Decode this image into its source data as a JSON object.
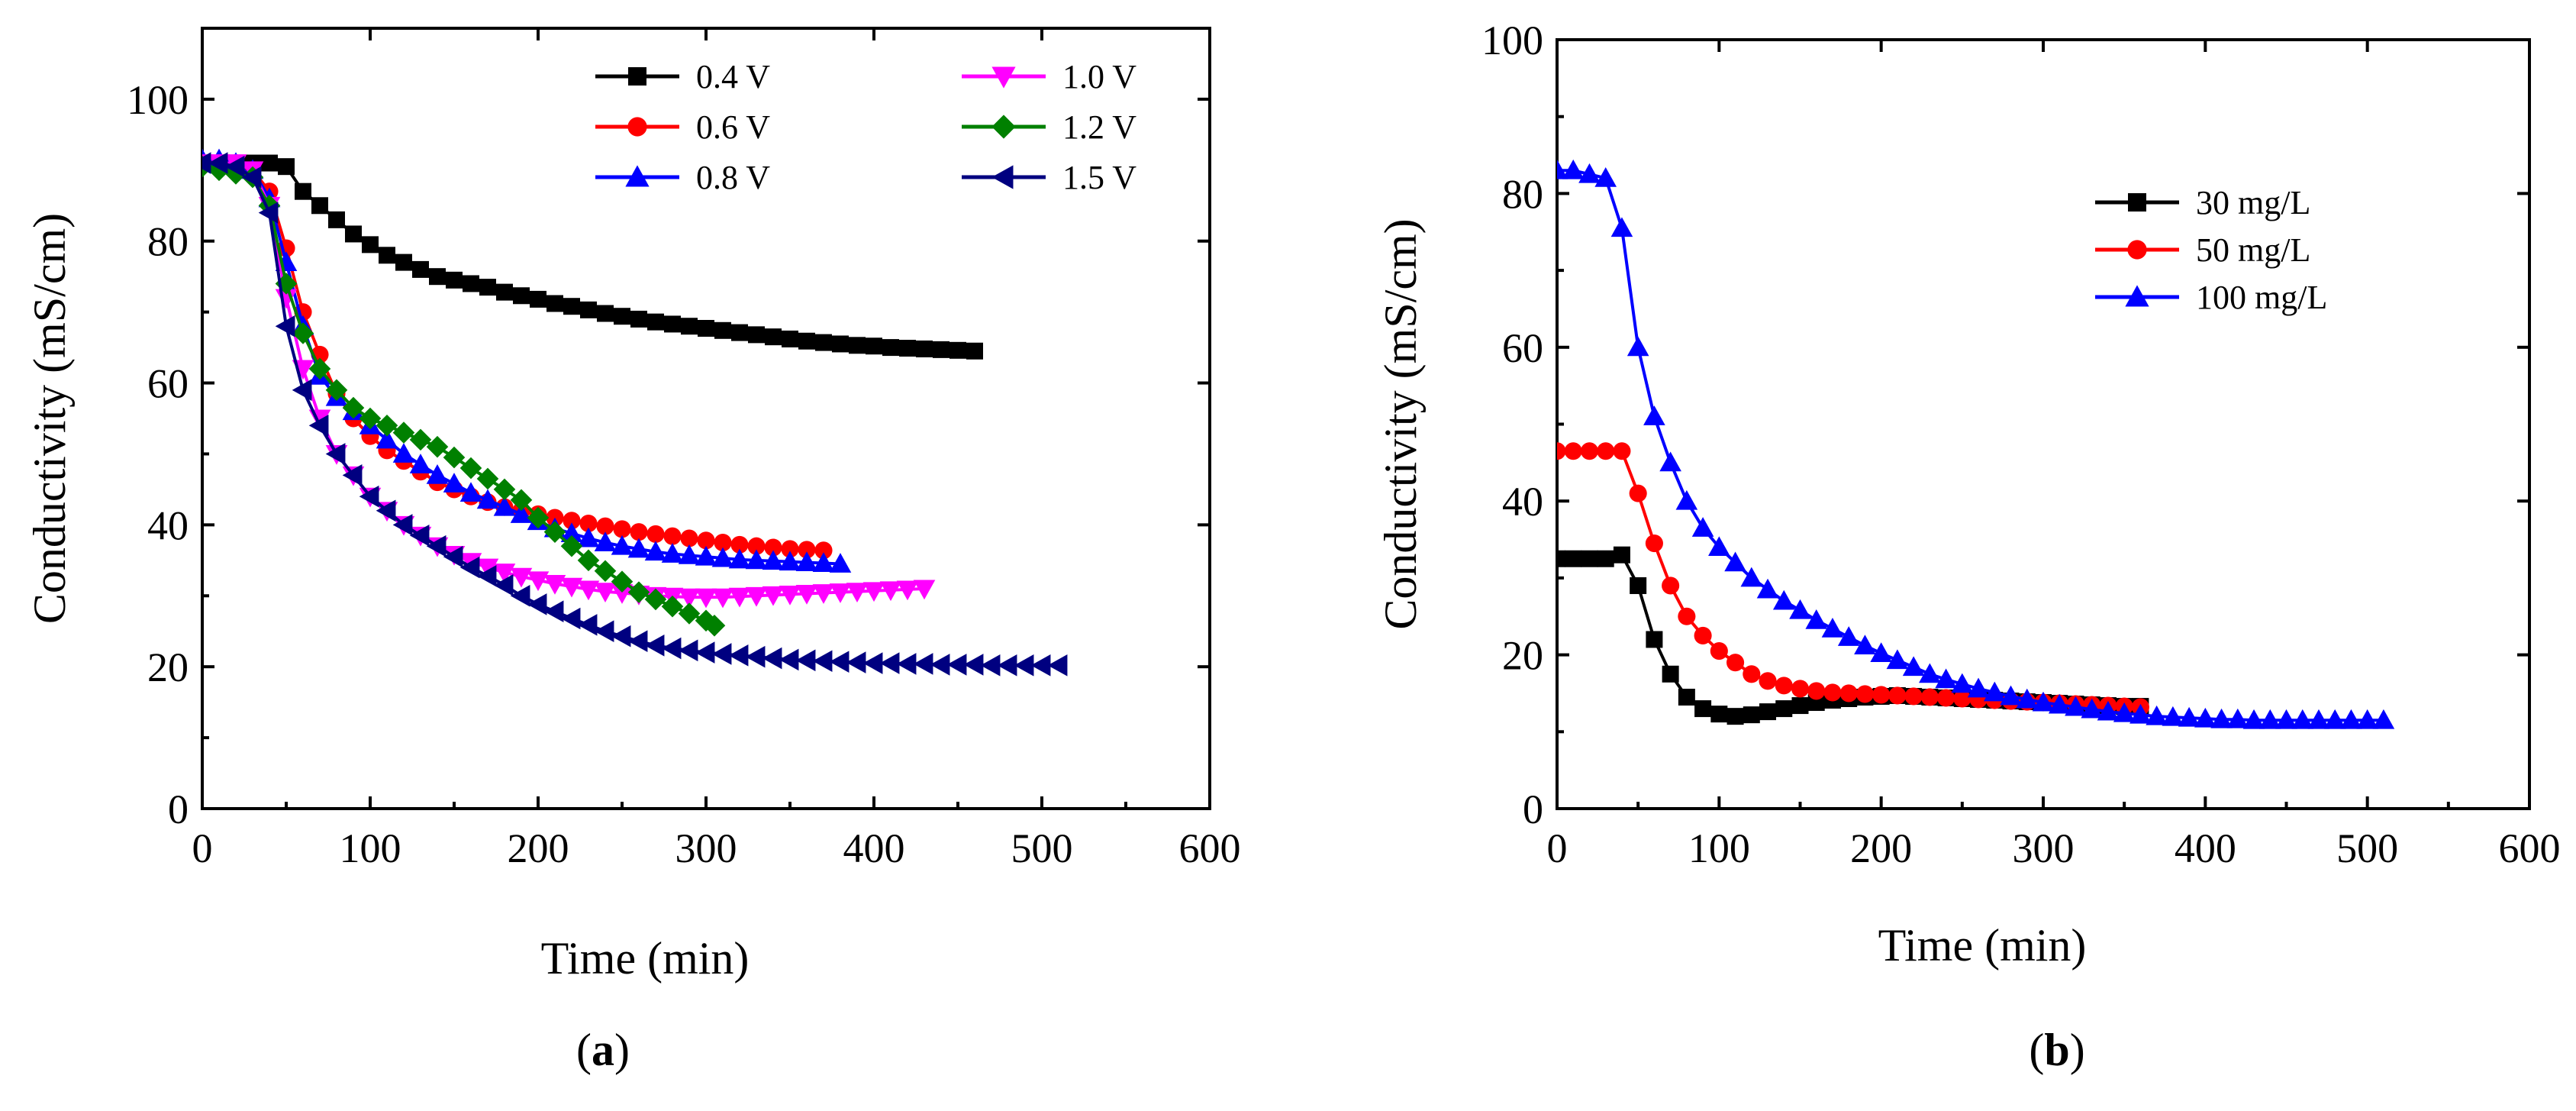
{
  "chart_data": [
    {
      "type": "line",
      "panel_label": "a",
      "caption_open": "(",
      "caption_close": ")",
      "title": "",
      "xlabel": "Time (min)",
      "ylabel": "Conductivity (mS/cm)",
      "xlim": [
        0,
        600
      ],
      "ylim": [
        0,
        110
      ],
      "xticks": [
        0,
        100,
        200,
        300,
        400,
        500,
        600
      ],
      "yticks": [
        0,
        20,
        40,
        60,
        80,
        100
      ],
      "legend_location": "top-right",
      "legend_columns": 2,
      "series": [
        {
          "name": "0.4 V",
          "color": "#000000",
          "marker": "square",
          "x": [
            0,
            10,
            20,
            30,
            40,
            50,
            60,
            70,
            80,
            90,
            100,
            110,
            120,
            130,
            140,
            150,
            160,
            170,
            180,
            190,
            200,
            210,
            220,
            230,
            240,
            250,
            260,
            270,
            280,
            290,
            300,
            310,
            320,
            330,
            340,
            350,
            360,
            370,
            380,
            390,
            400,
            410,
            420,
            430,
            440,
            450,
            460
          ],
          "y": [
            91,
            91,
            91,
            91,
            91,
            90.5,
            87,
            85,
            83,
            81,
            79.5,
            78,
            77,
            76,
            75,
            74.5,
            74,
            73.5,
            72.8,
            72.3,
            71.8,
            71.2,
            70.8,
            70.3,
            69.8,
            69.4,
            69,
            68.6,
            68.3,
            68,
            67.7,
            67.4,
            67.1,
            66.8,
            66.5,
            66.2,
            65.9,
            65.7,
            65.5,
            65.3,
            65.2,
            65,
            64.9,
            64.8,
            64.7,
            64.6,
            64.5
          ]
        },
        {
          "name": "0.6 V",
          "color": "#ff0000",
          "marker": "circle",
          "x": [
            0,
            10,
            20,
            30,
            40,
            50,
            60,
            70,
            80,
            90,
            100,
            110,
            120,
            130,
            140,
            150,
            160,
            170,
            180,
            190,
            200,
            210,
            220,
            230,
            240,
            250,
            260,
            270,
            280,
            290,
            300,
            310,
            320,
            330,
            340,
            350,
            360,
            370
          ],
          "y": [
            91,
            91,
            91,
            90,
            87,
            79,
            70,
            64,
            58.5,
            55,
            52.5,
            50.5,
            49,
            47.5,
            46,
            45,
            44,
            43.2,
            42.5,
            42,
            41.5,
            41,
            40.6,
            40.2,
            39.8,
            39.4,
            39,
            38.7,
            38.4,
            38.1,
            37.8,
            37.5,
            37.2,
            37,
            36.8,
            36.6,
            36.5,
            36.4
          ]
        },
        {
          "name": "0.8 V",
          "color": "#0000ff",
          "marker": "triangle-up",
          "x": [
            0,
            10,
            20,
            30,
            40,
            50,
            60,
            70,
            80,
            90,
            100,
            110,
            120,
            130,
            140,
            150,
            160,
            170,
            180,
            190,
            200,
            210,
            220,
            230,
            240,
            250,
            260,
            270,
            280,
            290,
            300,
            310,
            320,
            330,
            340,
            350,
            360,
            370,
            380
          ],
          "y": [
            91.5,
            91.5,
            91,
            90,
            86,
            77,
            68,
            61,
            58,
            56,
            54,
            52,
            50,
            48.5,
            47,
            45.8,
            44.5,
            43.5,
            42.5,
            41.5,
            40.5,
            39.5,
            38.8,
            38.1,
            37.5,
            37,
            36.6,
            36.2,
            35.9,
            35.7,
            35.5,
            35.3,
            35.1,
            35,
            34.9,
            34.8,
            34.7,
            34.6,
            34.5
          ]
        },
        {
          "name": "1.0 V",
          "color": "#ff00ff",
          "marker": "triangle-down",
          "x": [
            0,
            10,
            20,
            30,
            40,
            50,
            60,
            70,
            80,
            90,
            100,
            110,
            120,
            130,
            140,
            150,
            160,
            170,
            180,
            190,
            200,
            210,
            220,
            230,
            240,
            250,
            260,
            270,
            280,
            290,
            300,
            310,
            320,
            330,
            340,
            350,
            360,
            370,
            380,
            390,
            400,
            410,
            420,
            430
          ],
          "y": [
            91,
            91,
            91,
            90,
            85,
            72,
            62,
            55,
            50,
            47,
            44,
            42,
            40,
            38.5,
            37,
            35.8,
            34.8,
            34,
            33.3,
            32.7,
            32.2,
            31.7,
            31.3,
            30.9,
            30.6,
            30.4,
            30.2,
            30,
            29.9,
            29.8,
            29.8,
            29.8,
            29.9,
            30,
            30.1,
            30.2,
            30.3,
            30.4,
            30.5,
            30.6,
            30.7,
            30.8,
            30.9,
            31
          ]
        },
        {
          "name": "1.2 V",
          "color": "#008000",
          "marker": "diamond",
          "x": [
            0,
            10,
            20,
            30,
            40,
            50,
            60,
            70,
            80,
            90,
            100,
            110,
            120,
            130,
            140,
            150,
            160,
            170,
            180,
            190,
            200,
            210,
            220,
            230,
            240,
            250,
            260,
            270,
            280,
            290,
            300,
            305
          ],
          "y": [
            90.5,
            90,
            89.5,
            89,
            85,
            74,
            67,
            62,
            59,
            56.5,
            55,
            54,
            53,
            52,
            51,
            49.5,
            48,
            46.5,
            45,
            43.5,
            41,
            39,
            37,
            35,
            33.5,
            32,
            30.5,
            29.5,
            28.5,
            27.5,
            26.5,
            25.8
          ]
        },
        {
          "name": "1.5 V",
          "color": "#000080",
          "marker": "triangle-left",
          "x": [
            0,
            10,
            20,
            30,
            40,
            50,
            60,
            70,
            80,
            90,
            100,
            110,
            120,
            130,
            140,
            150,
            160,
            170,
            180,
            190,
            200,
            210,
            220,
            230,
            240,
            250,
            260,
            270,
            280,
            290,
            300,
            310,
            320,
            330,
            340,
            350,
            360,
            370,
            380,
            390,
            400,
            410,
            420,
            430,
            440,
            450,
            460,
            470,
            480,
            490,
            500,
            510
          ],
          "y": [
            91,
            91,
            90.5,
            89,
            84,
            68,
            59,
            54,
            50,
            47,
            44,
            42,
            40,
            38.5,
            37,
            35.5,
            34,
            32.8,
            31.5,
            30,
            28.8,
            27.8,
            26.8,
            25.9,
            25,
            24.3,
            23.6,
            23,
            22.6,
            22.3,
            22,
            21.8,
            21.6,
            21.4,
            21.2,
            21,
            20.9,
            20.8,
            20.7,
            20.6,
            20.5,
            20.5,
            20.4,
            20.4,
            20.3,
            20.3,
            20.3,
            20.2,
            20.2,
            20.2,
            20.2,
            20.2
          ]
        }
      ]
    },
    {
      "type": "line",
      "panel_label": "b",
      "caption_open": "(",
      "caption_close": ")",
      "title": "",
      "xlabel": "Time (min)",
      "ylabel": "Conductivity (mS/cm)",
      "xlim": [
        0,
        600
      ],
      "ylim": [
        0,
        100
      ],
      "xticks": [
        0,
        100,
        200,
        300,
        400,
        500,
        600
      ],
      "yticks": [
        0,
        20,
        40,
        60,
        80,
        100
      ],
      "legend_location": "top-right",
      "legend_columns": 1,
      "series": [
        {
          "name": "30 mg/L",
          "color": "#000000",
          "marker": "square",
          "x": [
            0,
            10,
            20,
            30,
            40,
            50,
            60,
            70,
            80,
            90,
            100,
            110,
            120,
            130,
            140,
            150,
            160,
            170,
            180,
            190,
            200,
            210,
            220,
            230,
            240,
            250,
            260,
            270,
            280,
            290,
            300,
            310,
            320,
            330,
            340,
            350,
            360
          ],
          "y": [
            32.5,
            32.5,
            32.5,
            32.5,
            33,
            29,
            22,
            17.5,
            14.5,
            13,
            12.3,
            12,
            12.2,
            12.6,
            13,
            13.4,
            13.8,
            14.1,
            14.3,
            14.5,
            14.6,
            14.7,
            14.6,
            14.5,
            14.4,
            14.3,
            14.2,
            14.1,
            14,
            13.9,
            13.8,
            13.7,
            13.6,
            13.5,
            13.4,
            13.3,
            13.3
          ]
        },
        {
          "name": "50 mg/L",
          "color": "#ff0000",
          "marker": "circle",
          "x": [
            0,
            10,
            20,
            30,
            40,
            50,
            60,
            70,
            80,
            90,
            100,
            110,
            120,
            130,
            140,
            150,
            160,
            170,
            180,
            190,
            200,
            210,
            220,
            230,
            240,
            250,
            260,
            270,
            280,
            290,
            300,
            310,
            320,
            330,
            340,
            350,
            360
          ],
          "y": [
            46.5,
            46.5,
            46.5,
            46.5,
            46.5,
            41,
            34.5,
            29,
            25,
            22.5,
            20.5,
            19,
            17.5,
            16.6,
            16,
            15.6,
            15.3,
            15.1,
            15,
            14.9,
            14.8,
            14.7,
            14.6,
            14.5,
            14.4,
            14.3,
            14.2,
            14.1,
            14,
            13.9,
            13.8,
            13.7,
            13.6,
            13.5,
            13.4,
            13.3,
            13.2
          ]
        },
        {
          "name": "100 mg/L",
          "color": "#0000ff",
          "marker": "triangle-up",
          "x": [
            0,
            10,
            20,
            30,
            40,
            50,
            60,
            70,
            80,
            90,
            100,
            110,
            120,
            130,
            140,
            150,
            160,
            170,
            180,
            190,
            200,
            210,
            220,
            230,
            240,
            250,
            260,
            270,
            280,
            290,
            300,
            310,
            320,
            330,
            340,
            350,
            360,
            370,
            380,
            390,
            400,
            410,
            420,
            430,
            440,
            450,
            460,
            470,
            480,
            490,
            500,
            510
          ],
          "y": [
            83,
            83,
            82.5,
            82,
            75.5,
            60,
            51,
            45,
            40,
            36.5,
            34,
            32,
            30,
            28.5,
            27,
            25.8,
            24.5,
            23.4,
            22.3,
            21.2,
            20.2,
            19.3,
            18.4,
            17.5,
            16.8,
            16.2,
            15.6,
            15.1,
            14.6,
            14.2,
            13.8,
            13.5,
            13.2,
            12.9,
            12.6,
            12.4,
            12.2,
            12,
            11.9,
            11.8,
            11.7,
            11.6,
            11.6,
            11.5,
            11.5,
            11.5,
            11.5,
            11.5,
            11.5,
            11.5,
            11.5,
            11.5
          ]
        }
      ]
    }
  ]
}
